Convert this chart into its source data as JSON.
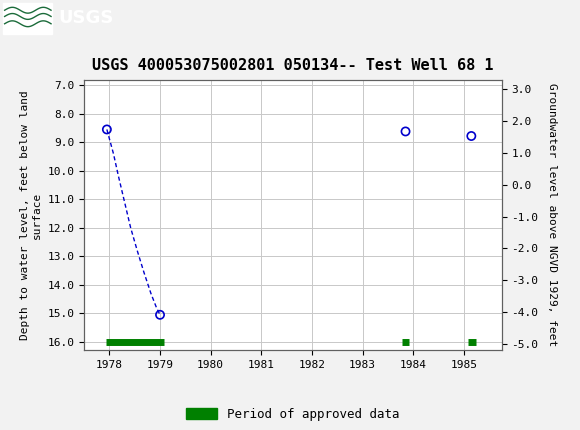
{
  "title": "USGS 400053075002801 050134-- Test Well 68 1",
  "ylabel_left": "Depth to water level, feet below land\nsurface",
  "ylabel_right": "Groundwater level above NGVD 1929, feet",
  "xlim": [
    1977.5,
    1985.75
  ],
  "ylim_left": [
    16.3,
    6.8
  ],
  "ylim_right": [
    -5.2,
    3.3
  ],
  "xticks": [
    1978,
    1979,
    1980,
    1981,
    1982,
    1983,
    1984,
    1985
  ],
  "yticks_left": [
    7.0,
    8.0,
    9.0,
    10.0,
    11.0,
    12.0,
    13.0,
    14.0,
    15.0,
    16.0
  ],
  "yticks_right": [
    3.0,
    2.0,
    1.0,
    0.0,
    -1.0,
    -2.0,
    -3.0,
    -4.0,
    -5.0
  ],
  "scatter_x": [
    1977.95,
    1979.0,
    1983.85,
    1985.15
  ],
  "scatter_y": [
    8.55,
    15.05,
    8.62,
    8.78
  ],
  "dashed_x": [
    1977.95,
    1978.08,
    1978.18,
    1978.3,
    1978.42,
    1978.55,
    1978.68,
    1978.82,
    1978.93,
    1979.0
  ],
  "dashed_y": [
    8.55,
    9.4,
    10.2,
    11.1,
    12.0,
    12.8,
    13.55,
    14.3,
    14.8,
    15.05
  ],
  "green_bars": [
    {
      "x_start": 1977.93,
      "x_end": 1979.08,
      "y": 16.02
    },
    {
      "x_start": 1983.78,
      "x_end": 1983.92,
      "y": 16.02
    },
    {
      "x_start": 1985.08,
      "x_end": 1985.25,
      "y": 16.02
    }
  ],
  "header_bg_color": "#1b6b3a",
  "plot_bg_color": "#ffffff",
  "outer_bg_color": "#f2f2f2",
  "grid_color": "#c8c8c8",
  "scatter_color": "#0000cc",
  "dashed_line_color": "#0000cc",
  "green_bar_color": "#008000",
  "legend_label": "Period of approved data",
  "tick_fontsize": 8,
  "title_fontsize": 11,
  "label_fontsize": 8
}
